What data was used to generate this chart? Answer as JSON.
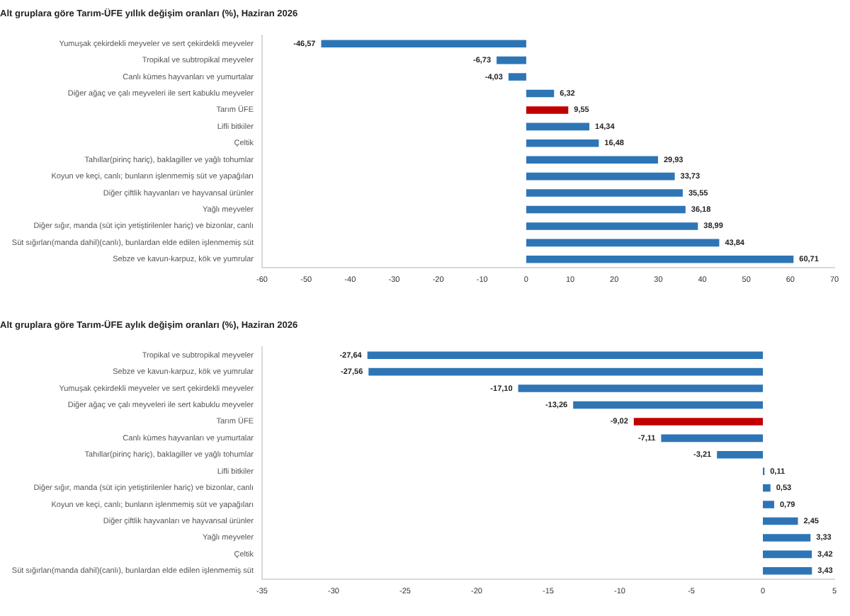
{
  "chart_data": [
    {
      "type": "bar",
      "orientation": "horizontal",
      "title": "Alt gruplara göre Tarım-ÜFE yıllık değişim oranları (%), Haziran 2026",
      "categories": [
        "Yumuşak çekirdekli meyveler ve sert çekirdekli meyveler",
        "Tropikal ve subtropikal meyveler",
        "Canlı kümes hayvanları ve yumurtalar",
        "Diğer ağaç ve çalı meyveleri ile sert kabuklu meyveler",
        "Tarım ÜFE",
        "Lifli bitkiler",
        "Çeltik",
        "Tahıllar(pirinç hariç), baklagiller ve yağlı tohumlar",
        "Koyun ve keçi, canlı; bunların işlenmemiş süt ve yapağıları",
        "Diğer çiftlik hayvanları ve hayvansal ürünler",
        "Yağlı meyveler",
        "Diğer sığır, manda (süt için yetiştirilenler hariç) ve bizonlar, canlı",
        "Süt sığırları(manda dahil)(canlı), bunlardan elde edilen işlenmemiş süt",
        "Sebze ve kavun-karpuz, kök ve yumrular"
      ],
      "values": [
        -46.57,
        -6.73,
        -4.03,
        6.32,
        9.55,
        14.34,
        16.48,
        29.93,
        33.73,
        35.55,
        36.18,
        38.99,
        43.84,
        60.71
      ],
      "value_labels": [
        "-46,57",
        "-6,73",
        "-4,03",
        "6,32",
        "9,55",
        "14,34",
        "16,48",
        "29,93",
        "33,73",
        "35,55",
        "36,18",
        "38,99",
        "43,84",
        "60,71"
      ],
      "colors": [
        "#2e75b6",
        "#2e75b6",
        "#2e75b6",
        "#2e75b6",
        "#c00000",
        "#2e75b6",
        "#2e75b6",
        "#2e75b6",
        "#2e75b6",
        "#2e75b6",
        "#2e75b6",
        "#2e75b6",
        "#2e75b6",
        "#2e75b6"
      ],
      "xlim": [
        -60,
        70
      ],
      "xticks": [
        -60,
        -50,
        -40,
        -30,
        -20,
        -10,
        0,
        10,
        20,
        30,
        40,
        50,
        60,
        70
      ]
    },
    {
      "type": "bar",
      "orientation": "horizontal",
      "title": "Alt gruplara göre Tarım-ÜFE aylık değişim oranları (%), Haziran 2026",
      "categories": [
        "Tropikal ve subtropikal meyveler",
        "Sebze ve kavun-karpuz, kök ve yumrular",
        "Yumuşak çekirdekli meyveler ve sert çekirdekli meyveler",
        "Diğer ağaç ve çalı meyveleri ile sert kabuklu meyveler",
        "Tarım ÜFE",
        "Canlı kümes hayvanları ve yumurtalar",
        "Tahıllar(pirinç hariç), baklagiller ve yağlı tohumlar",
        "Lifli bitkiler",
        "Diğer sığır, manda (süt için yetiştirilenler hariç) ve bizonlar, canlı",
        "Koyun ve keçi, canlı; bunların işlenmemiş süt ve yapağıları",
        "Diğer çiftlik hayvanları ve hayvansal ürünler",
        "Yağlı meyveler",
        "Çeltik",
        "Süt sığırları(manda dahil)(canlı), bunlardan elde edilen işlenmemiş süt"
      ],
      "values": [
        -27.64,
        -27.56,
        -17.1,
        -13.26,
        -9.02,
        -7.11,
        -3.21,
        0.11,
        0.53,
        0.79,
        2.45,
        3.33,
        3.42,
        3.43
      ],
      "value_labels": [
        "-27,64",
        "-27,56",
        "-17,10",
        "-13,26",
        "-9,02",
        "-7,11",
        "-3,21",
        "0,11",
        "0,53",
        "0,79",
        "2,45",
        "3,33",
        "3,42",
        "3,43"
      ],
      "colors": [
        "#2e75b6",
        "#2e75b6",
        "#2e75b6",
        "#2e75b6",
        "#c00000",
        "#2e75b6",
        "#2e75b6",
        "#2e75b6",
        "#2e75b6",
        "#2e75b6",
        "#2e75b6",
        "#2e75b6",
        "#2e75b6",
        "#2e75b6"
      ],
      "xlim": [
        -35,
        5
      ],
      "xticks": [
        -35,
        -30,
        -25,
        -20,
        -15,
        -10,
        -5,
        0,
        5
      ]
    }
  ]
}
